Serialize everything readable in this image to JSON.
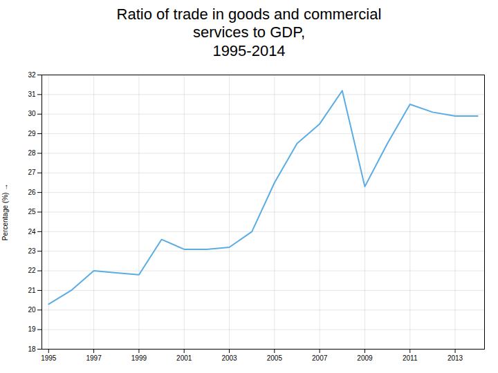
{
  "chart_data": {
    "type": "line",
    "title": "Ratio of trade in goods and commercial\nservices to GDP,\n1995-2014",
    "ylabel": "Percentage (%)",
    "x": [
      1995,
      1996,
      1997,
      1998,
      1999,
      2000,
      2001,
      2002,
      2003,
      2004,
      2005,
      2006,
      2007,
      2008,
      2009,
      2010,
      2011,
      2012,
      2013,
      2014
    ],
    "values": [
      20.3,
      21.0,
      22.0,
      21.9,
      21.8,
      23.6,
      23.1,
      23.1,
      23.2,
      24.0,
      26.5,
      28.5,
      29.5,
      31.2,
      26.3,
      28.5,
      30.5,
      30.1,
      29.9,
      29.9
    ],
    "color": "#5aace4",
    "xlim": [
      1994.7,
      2014.3
    ],
    "xticks": [
      1995,
      1997,
      1999,
      2001,
      2003,
      2005,
      2007,
      2009,
      2011,
      2013
    ],
    "ylim": [
      18,
      32
    ],
    "yticks": [
      18,
      19,
      20,
      21,
      22,
      23,
      24,
      25,
      26,
      27,
      28,
      29,
      30,
      31,
      32
    ],
    "grid": true
  }
}
